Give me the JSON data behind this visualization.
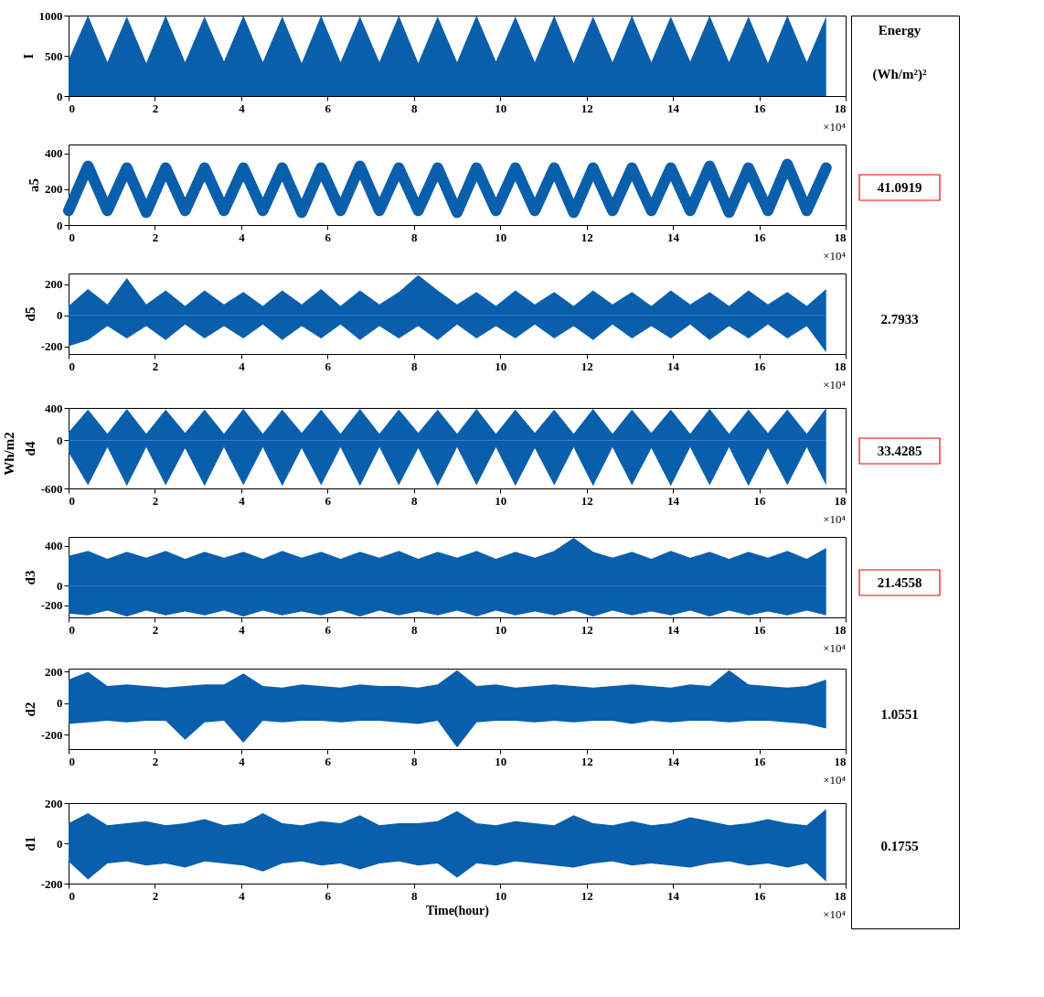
{
  "chart_data": [
    {
      "type": "other",
      "ylabel": "Wh/m2"
    },
    {
      "type": "area",
      "ylabel": "I",
      "xlim": [
        0,
        18
      ],
      "xticks": [
        0,
        2,
        4,
        6,
        8,
        10,
        12,
        14,
        16,
        18
      ],
      "ylim": [
        0,
        1000
      ],
      "yticks": [
        0,
        500,
        1000
      ],
      "grid": false,
      "annotations": [
        "×10⁴"
      ],
      "x": [
        0,
        0.45,
        0.9,
        1.35,
        1.8,
        2.25,
        2.7,
        3.15,
        3.6,
        4.05,
        4.5,
        4.95,
        5.4,
        5.85,
        6.3,
        6.75,
        7.2,
        7.65,
        8.1,
        8.55,
        9,
        9.45,
        9.9,
        10.35,
        10.8,
        11.25,
        11.7,
        12.15,
        12.6,
        13.05,
        13.5,
        13.95,
        14.4,
        14.85,
        15.3,
        15.75,
        16.2,
        16.65,
        17.1,
        17.55
      ],
      "series": [
        {
          "color": "#0a5fad",
          "values": [
            450,
            1000,
            420,
            990,
            410,
            1000,
            420,
            990,
            430,
            1000,
            420,
            990,
            410,
            1000,
            420,
            990,
            420,
            1000,
            410,
            990,
            420,
            1000,
            430,
            990,
            420,
            1000,
            410,
            990,
            420,
            1000,
            420,
            990,
            430,
            1000,
            420,
            990,
            410,
            1000,
            420,
            990
          ]
        }
      ]
    },
    {
      "type": "line",
      "ylabel": "a5",
      "xlim": [
        0,
        18
      ],
      "xticks": [
        0,
        2,
        4,
        6,
        8,
        10,
        12,
        14,
        16,
        18
      ],
      "ylim": [
        0,
        450
      ],
      "yticks": [
        0,
        200,
        400
      ],
      "grid": false,
      "annotations": [
        "×10⁴"
      ],
      "x": [
        0,
        0.45,
        0.9,
        1.35,
        1.8,
        2.25,
        2.7,
        3.15,
        3.6,
        4.05,
        4.5,
        4.95,
        5.4,
        5.85,
        6.3,
        6.75,
        7.2,
        7.65,
        8.1,
        8.55,
        9,
        9.45,
        9.9,
        10.35,
        10.8,
        11.25,
        11.7,
        12.15,
        12.6,
        13.05,
        13.5,
        13.95,
        14.4,
        14.85,
        15.3,
        15.75,
        16.2,
        16.65,
        17.1,
        17.55
      ],
      "series": [
        {
          "color": "#0a5fad",
          "values": [
            80,
            330,
            80,
            320,
            70,
            320,
            80,
            320,
            80,
            320,
            80,
            320,
            70,
            320,
            80,
            330,
            80,
            320,
            80,
            320,
            70,
            320,
            80,
            320,
            80,
            320,
            70,
            320,
            80,
            320,
            80,
            320,
            80,
            330,
            70,
            320,
            80,
            340,
            80,
            320
          ]
        }
      ]
    },
    {
      "type": "area",
      "ylabel": "d5",
      "xlim": [
        0,
        18
      ],
      "xticks": [
        0,
        2,
        4,
        6,
        8,
        10,
        12,
        14,
        16,
        18
      ],
      "ylim": [
        -250,
        270
      ],
      "yticks": [
        -200,
        0,
        200
      ],
      "grid": false,
      "annotations": [
        "×10⁴"
      ],
      "x": [
        0,
        0.45,
        0.9,
        1.35,
        1.8,
        2.25,
        2.7,
        3.15,
        3.6,
        4.05,
        4.5,
        4.95,
        5.4,
        5.85,
        6.3,
        6.75,
        7.2,
        7.65,
        8.1,
        8.55,
        9,
        9.45,
        9.9,
        10.35,
        10.8,
        11.25,
        11.7,
        12.15,
        12.6,
        13.05,
        13.5,
        13.95,
        14.4,
        14.85,
        15.3,
        15.75,
        16.2,
        16.65,
        17.1,
        17.55
      ],
      "series": [
        {
          "color": "#0a5fad",
          "values": [
            60,
            170,
            70,
            240,
            70,
            160,
            60,
            160,
            70,
            150,
            60,
            160,
            70,
            170,
            60,
            160,
            70,
            150,
            260,
            160,
            70,
            150,
            60,
            160,
            70,
            150,
            60,
            160,
            70,
            150,
            60,
            160,
            70,
            150,
            60,
            160,
            70,
            150,
            60,
            170
          ]
        },
        {
          "color": "#0a5fad",
          "values": [
            -200,
            -160,
            -70,
            -150,
            -70,
            -160,
            -60,
            -150,
            -70,
            -150,
            -60,
            -160,
            -70,
            -150,
            -60,
            -160,
            -70,
            -150,
            -70,
            -160,
            -60,
            -150,
            -70,
            -150,
            -60,
            -150,
            -70,
            -160,
            -60,
            -150,
            -70,
            -150,
            -60,
            -160,
            -70,
            -150,
            -60,
            -150,
            -70,
            -240
          ]
        }
      ]
    },
    {
      "type": "area",
      "ylabel": "d4",
      "xlim": [
        0,
        18
      ],
      "xticks": [
        0,
        2,
        4,
        6,
        8,
        10,
        12,
        14,
        16,
        18
      ],
      "ylim": [
        -600,
        400
      ],
      "yticks": [
        -600,
        0,
        400
      ],
      "grid": false,
      "annotations": [
        "×10⁴"
      ],
      "x": [
        0,
        0.45,
        0.9,
        1.35,
        1.8,
        2.25,
        2.7,
        3.15,
        3.6,
        4.05,
        4.5,
        4.95,
        5.4,
        5.85,
        6.3,
        6.75,
        7.2,
        7.65,
        8.1,
        8.55,
        9,
        9.45,
        9.9,
        10.35,
        10.8,
        11.25,
        11.7,
        12.15,
        12.6,
        13.05,
        13.5,
        13.95,
        14.4,
        14.85,
        15.3,
        15.75,
        16.2,
        16.65,
        17.1,
        17.55
      ],
      "series": [
        {
          "color": "#0a5fad",
          "values": [
            100,
            380,
            80,
            390,
            80,
            380,
            90,
            380,
            80,
            390,
            80,
            380,
            90,
            380,
            80,
            390,
            80,
            380,
            90,
            380,
            80,
            390,
            80,
            380,
            90,
            380,
            80,
            390,
            80,
            380,
            90,
            380,
            80,
            390,
            80,
            380,
            90,
            380,
            80,
            400
          ]
        },
        {
          "color": "#0a5fad",
          "values": [
            -150,
            -560,
            -90,
            -570,
            -90,
            -560,
            -100,
            -570,
            -90,
            -560,
            -90,
            -570,
            -100,
            -560,
            -90,
            -570,
            -90,
            -560,
            -100,
            -570,
            -90,
            -560,
            -90,
            -570,
            -100,
            -560,
            -90,
            -570,
            -90,
            -560,
            -100,
            -570,
            -90,
            -560,
            -90,
            -570,
            -100,
            -560,
            -90,
            -560
          ]
        }
      ]
    },
    {
      "type": "area",
      "ylabel": "d3",
      "xlim": [
        0,
        18
      ],
      "xticks": [
        0,
        2,
        4,
        6,
        8,
        10,
        12,
        14,
        16,
        18
      ],
      "ylim": [
        -320,
        490
      ],
      "yticks": [
        -200,
        0,
        400
      ],
      "grid": false,
      "annotations": [
        "×10⁴"
      ],
      "x": [
        0,
        0.45,
        0.9,
        1.35,
        1.8,
        2.25,
        2.7,
        3.15,
        3.6,
        4.05,
        4.5,
        4.95,
        5.4,
        5.85,
        6.3,
        6.75,
        7.2,
        7.65,
        8.1,
        8.55,
        9,
        9.45,
        9.9,
        10.35,
        10.8,
        11.25,
        11.7,
        12.15,
        12.6,
        13.05,
        13.5,
        13.95,
        14.4,
        14.85,
        15.3,
        15.75,
        16.2,
        16.65,
        17.1,
        17.55
      ],
      "series": [
        {
          "color": "#0a5fad",
          "values": [
            300,
            350,
            270,
            340,
            280,
            350,
            270,
            340,
            280,
            340,
            270,
            350,
            280,
            340,
            270,
            340,
            280,
            350,
            270,
            340,
            280,
            350,
            270,
            340,
            280,
            350,
            480,
            340,
            280,
            340,
            270,
            350,
            280,
            340,
            270,
            340,
            280,
            350,
            270,
            380
          ]
        },
        {
          "color": "#0a5fad",
          "values": [
            -280,
            -300,
            -250,
            -310,
            -250,
            -300,
            -260,
            -300,
            -250,
            -310,
            -250,
            -300,
            -260,
            -300,
            -250,
            -310,
            -250,
            -300,
            -260,
            -300,
            -250,
            -310,
            -250,
            -300,
            -260,
            -300,
            -250,
            -310,
            -250,
            -300,
            -260,
            -300,
            -250,
            -310,
            -250,
            -300,
            -260,
            -300,
            -250,
            -300
          ]
        }
      ]
    },
    {
      "type": "area",
      "ylabel": "d2",
      "xlim": [
        0,
        18
      ],
      "xticks": [
        0,
        2,
        4,
        6,
        8,
        10,
        12,
        14,
        16,
        18
      ],
      "ylim": [
        -290,
        220
      ],
      "yticks": [
        -200,
        0,
        200
      ],
      "grid": false,
      "annotations": [
        "×10⁴"
      ],
      "x": [
        0,
        0.45,
        0.9,
        1.35,
        1.8,
        2.25,
        2.7,
        3.15,
        3.6,
        4.05,
        4.5,
        4.95,
        5.4,
        5.85,
        6.3,
        6.75,
        7.2,
        7.65,
        8.1,
        8.55,
        9,
        9.45,
        9.9,
        10.35,
        10.8,
        11.25,
        11.7,
        12.15,
        12.6,
        13.05,
        13.5,
        13.95,
        14.4,
        14.85,
        15.3,
        15.75,
        16.2,
        16.65,
        17.1,
        17.55
      ],
      "series": [
        {
          "color": "#0a5fad",
          "values": [
            150,
            200,
            110,
            120,
            110,
            100,
            110,
            120,
            120,
            190,
            110,
            100,
            120,
            110,
            100,
            120,
            110,
            110,
            100,
            120,
            210,
            110,
            120,
            100,
            110,
            120,
            110,
            100,
            110,
            120,
            110,
            100,
            120,
            110,
            210,
            120,
            110,
            100,
            110,
            150
          ]
        },
        {
          "color": "#0a5fad",
          "values": [
            -130,
            -120,
            -110,
            -120,
            -110,
            -110,
            -230,
            -120,
            -110,
            -250,
            -110,
            -120,
            -110,
            -110,
            -120,
            -110,
            -110,
            -120,
            -130,
            -110,
            -280,
            -120,
            -110,
            -110,
            -120,
            -110,
            -120,
            -110,
            -110,
            -130,
            -110,
            -120,
            -110,
            -110,
            -120,
            -110,
            -110,
            -120,
            -130,
            -160
          ]
        }
      ]
    },
    {
      "type": "area",
      "ylabel": "d1",
      "xlabel": "Time(hour)",
      "xlim": [
        0,
        18
      ],
      "xticks": [
        0,
        2,
        4,
        6,
        8,
        10,
        12,
        14,
        16,
        18
      ],
      "ylim": [
        -200,
        200
      ],
      "yticks": [
        -200,
        0,
        200
      ],
      "grid": false,
      "annotations": [
        "×10⁴"
      ],
      "x": [
        0,
        0.45,
        0.9,
        1.35,
        1.8,
        2.25,
        2.7,
        3.15,
        3.6,
        4.05,
        4.5,
        4.95,
        5.4,
        5.85,
        6.3,
        6.75,
        7.2,
        7.65,
        8.1,
        8.55,
        9,
        9.45,
        9.9,
        10.35,
        10.8,
        11.25,
        11.7,
        12.15,
        12.6,
        13.05,
        13.5,
        13.95,
        14.4,
        14.85,
        15.3,
        15.75,
        16.2,
        16.65,
        17.1,
        17.55
      ],
      "series": [
        {
          "color": "#0a5fad",
          "values": [
            100,
            150,
            90,
            100,
            110,
            90,
            100,
            120,
            90,
            100,
            150,
            100,
            90,
            110,
            100,
            140,
            90,
            100,
            100,
            110,
            160,
            100,
            90,
            110,
            100,
            90,
            140,
            100,
            90,
            110,
            90,
            100,
            130,
            110,
            90,
            100,
            120,
            100,
            90,
            170
          ]
        },
        {
          "color": "#0a5fad",
          "values": [
            -90,
            -180,
            -100,
            -90,
            -110,
            -100,
            -120,
            -90,
            -100,
            -110,
            -140,
            -100,
            -90,
            -110,
            -100,
            -130,
            -100,
            -90,
            -110,
            -100,
            -170,
            -100,
            -110,
            -90,
            -100,
            -110,
            -120,
            -100,
            -90,
            -110,
            -100,
            -110,
            -120,
            -100,
            -90,
            -110,
            -100,
            -120,
            -100,
            -190
          ]
        }
      ]
    },
    {
      "type": "other",
      "annotations": [
        "Energy",
        "(Wh/m²)²",
        "41.0919",
        "2.7933",
        "33.4285",
        "21.4558",
        "1.0551",
        "0.1755"
      ],
      "colors": [
        null,
        null,
        "#ff0000",
        null,
        "#ff0000",
        "#ff0000",
        null,
        null
      ]
    }
  ]
}
